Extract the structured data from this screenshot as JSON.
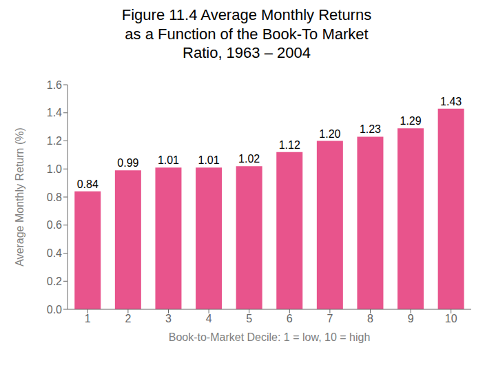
{
  "chart_data": {
    "type": "bar",
    "title": "Figure 11.4 Average Monthly Returns\nas a Function of the Book-To Market\nRatio, 1963 – 2004",
    "x_label": "Book-to-Market Decile: 1 = low, 10 = high",
    "y_label": "Average Monthly Return (%)",
    "categories": [
      1,
      2,
      3,
      4,
      5,
      6,
      7,
      8,
      9,
      10
    ],
    "values": [
      0.84,
      0.99,
      1.01,
      1.01,
      1.02,
      1.12,
      1.2,
      1.23,
      1.29,
      1.43
    ],
    "value_labels": [
      "0.84",
      "0.99",
      "1.01",
      "1.01",
      "1.02",
      "1.12",
      "1.20",
      "1.23",
      "1.29",
      "1.43"
    ],
    "data_labels": true,
    "color": "#E8548C",
    "ylim": [
      0,
      1.6
    ],
    "yticks": [
      {
        "value": 0.0,
        "label": "0.0"
      },
      0.2,
      0.4,
      0.6,
      0.8,
      {
        "value": 1.0,
        "label": "1.0"
      },
      1.2,
      1.4,
      1.6
    ],
    "grid": false
  }
}
